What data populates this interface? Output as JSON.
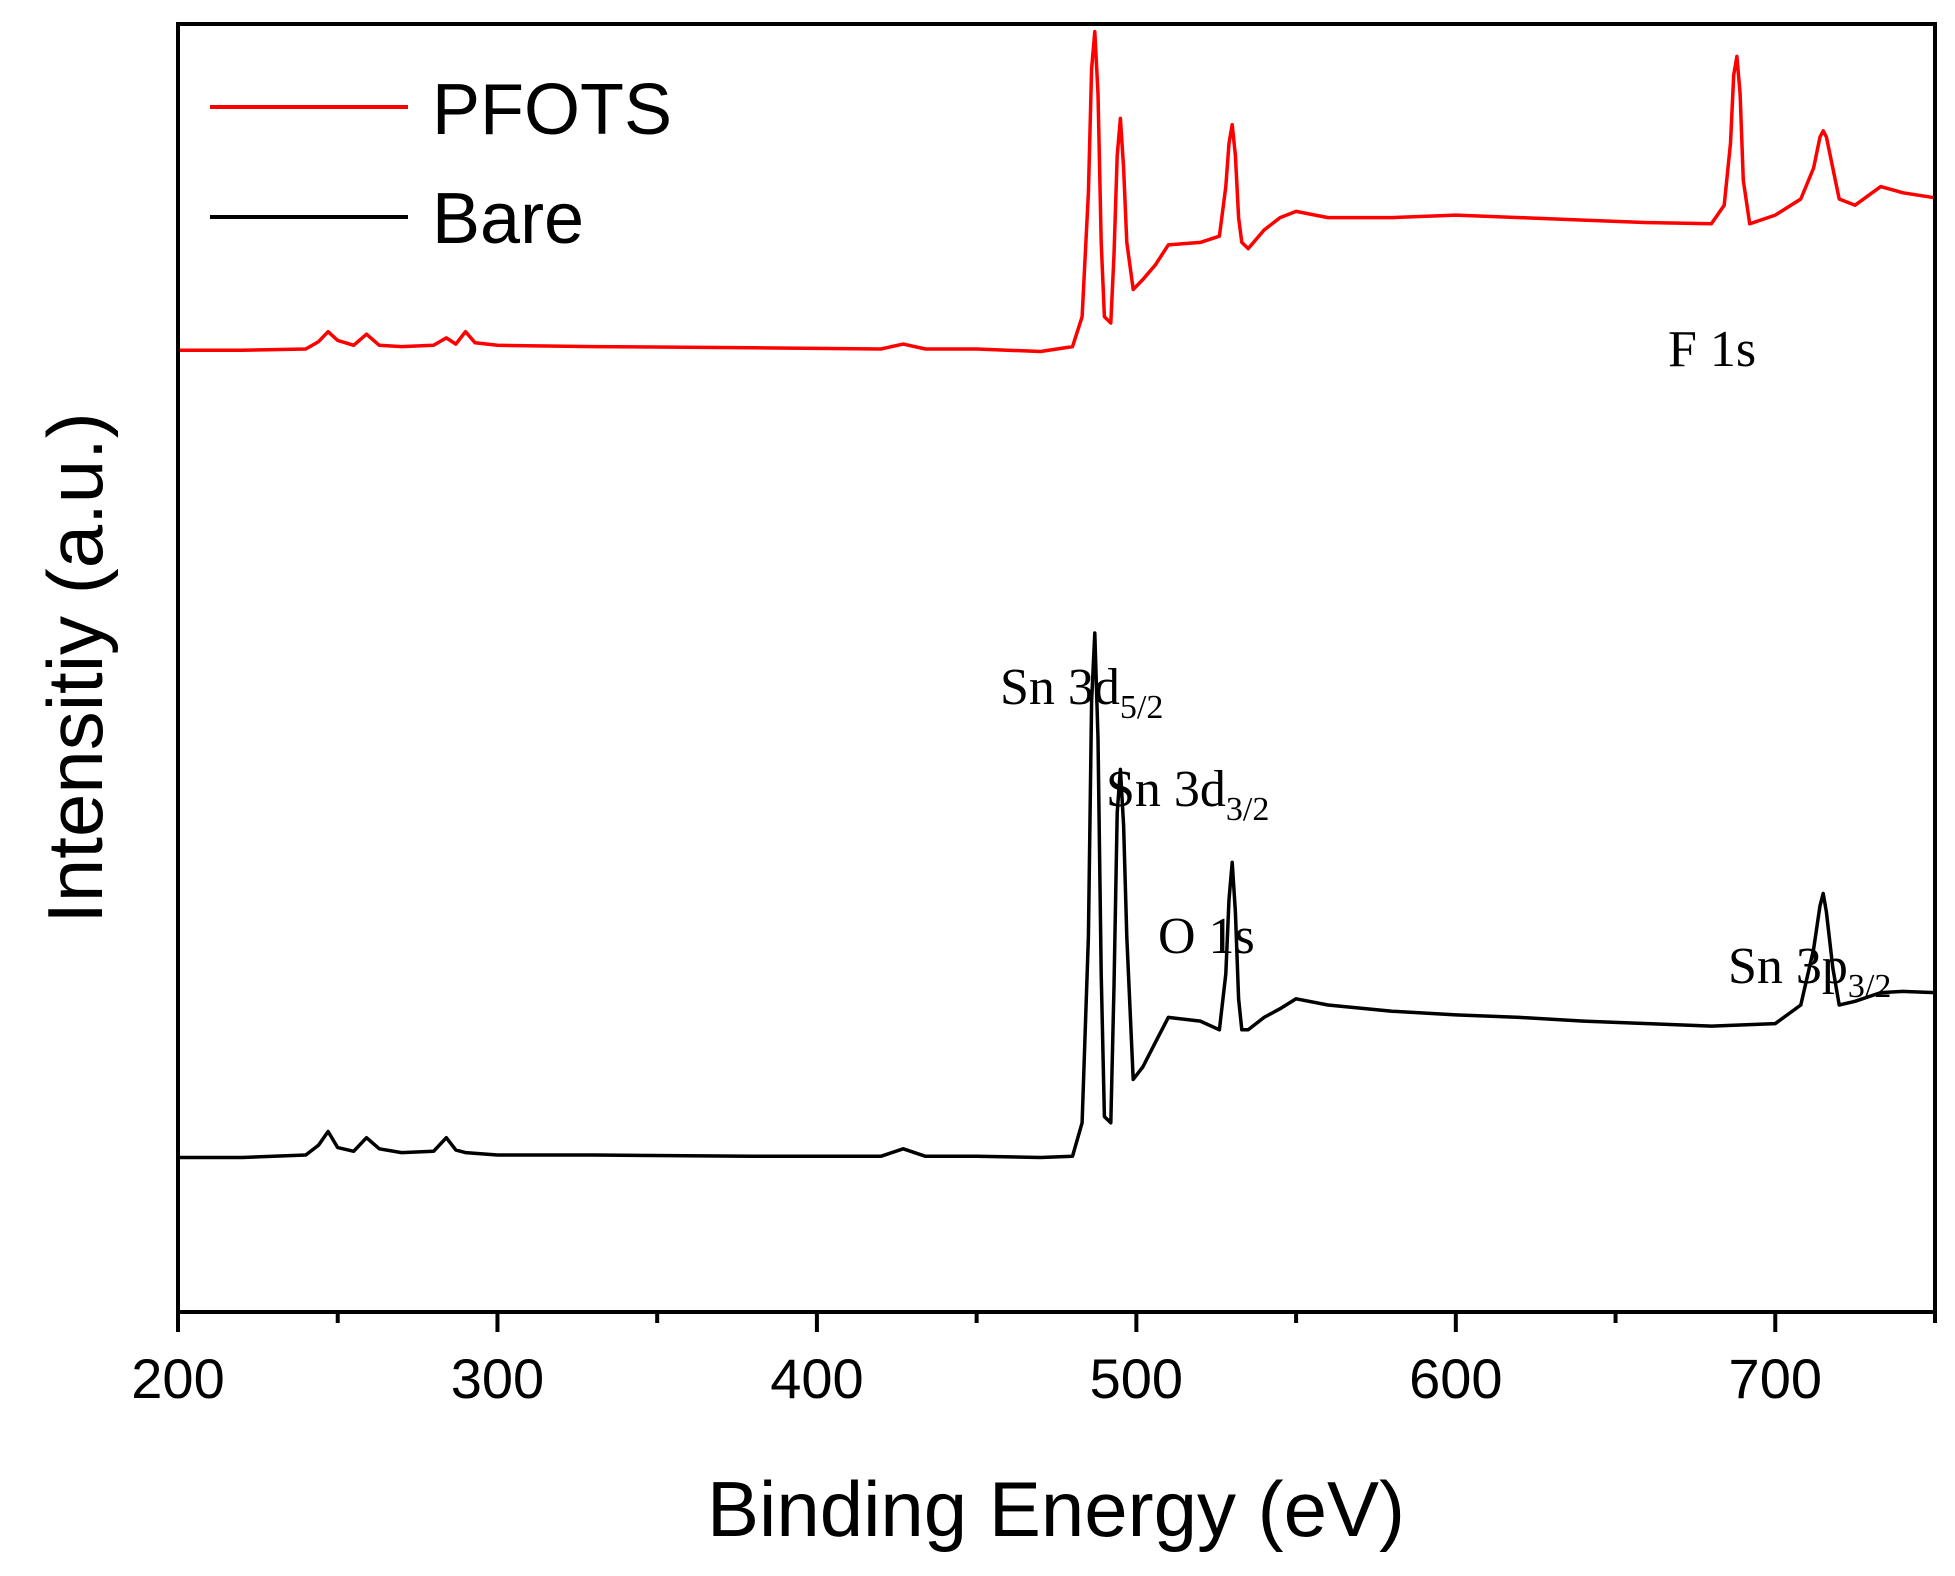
{
  "chart_data": {
    "type": "line",
    "title": "",
    "xlabel": "Binding Energy (eV)",
    "ylabel": "Intensitiy (a.u.)",
    "xlim": [
      200,
      750
    ],
    "ylim": [
      0,
      100
    ],
    "x_major_ticks": [
      200,
      300,
      400,
      500,
      600,
      700
    ],
    "x_tick_labels": [
      "200",
      "300",
      "400",
      "500",
      "600",
      "700"
    ],
    "x_minor_ticks": [
      250,
      350,
      450,
      550,
      650,
      750
    ],
    "y_ticks_shown": false,
    "grid": false,
    "legend": {
      "position": "top-left",
      "entries": [
        {
          "label": "PFOTS",
          "color": "#ff0000"
        },
        {
          "label": "Bare",
          "color": "#000000"
        }
      ]
    },
    "series": [
      {
        "name": "PFOTS",
        "color": "#ff0000",
        "x": [
          200,
          220,
          240,
          244,
          247,
          250,
          255,
          259,
          263,
          270,
          280,
          284,
          287,
          290,
          293,
          300,
          330,
          380,
          420,
          427,
          434,
          450,
          470,
          480,
          483,
          485,
          486,
          487,
          488,
          489,
          490,
          492,
          493,
          494,
          495,
          496,
          497,
          499,
          502,
          506,
          510,
          520,
          526,
          528,
          529,
          530,
          531,
          532,
          533,
          535,
          540,
          545,
          550,
          560,
          580,
          600,
          620,
          640,
          660,
          680,
          684,
          686,
          687,
          688,
          689,
          690,
          692,
          700,
          708,
          712,
          714,
          715,
          716,
          718,
          720,
          725,
          733,
          740,
          750
        ],
        "values": [
          75.3,
          75.3,
          75.4,
          76.0,
          76.8,
          76.1,
          75.7,
          76.6,
          75.7,
          75.6,
          75.7,
          76.3,
          75.8,
          76.8,
          75.9,
          75.7,
          75.6,
          75.5,
          75.4,
          75.8,
          75.4,
          75.4,
          75.2,
          75.6,
          78.0,
          88.0,
          98.0,
          101.0,
          96.0,
          84.0,
          78.0,
          77.5,
          83.0,
          91.0,
          94.0,
          90.0,
          84.0,
          80.2,
          81.0,
          82.2,
          83.8,
          84.0,
          84.5,
          88.5,
          92.0,
          93.5,
          91.0,
          86.0,
          84.0,
          83.5,
          85.0,
          86.0,
          86.5,
          86.0,
          86.0,
          86.2,
          86.0,
          85.8,
          85.6,
          85.5,
          87.0,
          92.0,
          97.5,
          99.0,
          96.0,
          89.0,
          85.5,
          86.2,
          87.5,
          90.0,
          92.5,
          93.0,
          92.5,
          90.0,
          87.5,
          87.0,
          88.5,
          88.0,
          87.6
        ]
      },
      {
        "name": "Bare",
        "color": "#000000",
        "x": [
          200,
          220,
          240,
          244,
          247,
          250,
          255,
          259,
          263,
          270,
          280,
          284,
          287,
          290,
          300,
          330,
          380,
          420,
          427,
          434,
          450,
          470,
          480,
          483,
          485,
          486,
          487,
          488,
          489,
          490,
          492,
          493,
          494,
          495,
          496,
          497,
          499,
          502,
          506,
          510,
          520,
          526,
          528,
          529,
          530,
          531,
          532,
          533,
          535,
          540,
          545,
          550,
          560,
          580,
          600,
          620,
          640,
          660,
          680,
          700,
          708,
          712,
          714,
          715,
          716,
          718,
          720,
          725,
          733,
          740,
          750
        ],
        "values": [
          10.2,
          10.2,
          10.4,
          11.2,
          12.3,
          11.0,
          10.7,
          11.8,
          10.9,
          10.6,
          10.7,
          11.8,
          10.8,
          10.6,
          10.4,
          10.4,
          10.3,
          10.3,
          10.9,
          10.3,
          10.3,
          10.2,
          10.3,
          13.0,
          28.0,
          47.0,
          52.5,
          44.0,
          25.0,
          13.5,
          13.0,
          24.0,
          38.0,
          41.5,
          37.0,
          28.0,
          16.5,
          17.5,
          19.5,
          21.5,
          21.2,
          20.5,
          25.0,
          31.0,
          34.0,
          30.0,
          23.0,
          20.5,
          20.5,
          21.5,
          22.2,
          23.0,
          22.5,
          22.0,
          21.7,
          21.5,
          21.2,
          21.0,
          20.8,
          21.0,
          22.5,
          27.0,
          30.5,
          31.5,
          30.0,
          25.5,
          22.5,
          22.8,
          23.5,
          23.6,
          23.5
        ]
      }
    ],
    "annotations": [
      {
        "text": "Sn 3d",
        "sub": "5/2",
        "x": 487,
        "series": "Bare"
      },
      {
        "text": "Sn 3d",
        "sub": "3/2",
        "x": 495,
        "series": "Bare"
      },
      {
        "text": "O 1s",
        "sub": "",
        "x": 530,
        "series": "Bare"
      },
      {
        "text": "Sn 3p",
        "sub": "3/2",
        "x": 715,
        "series": "Bare"
      },
      {
        "text": "F 1s",
        "sub": "",
        "x": 688,
        "series": "PFOTS"
      }
    ]
  }
}
